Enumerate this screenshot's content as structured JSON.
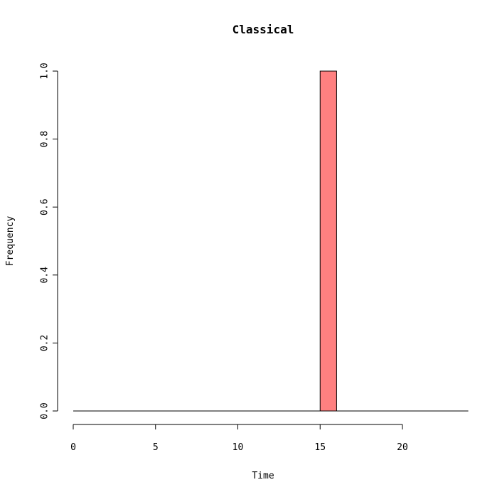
{
  "chart_data": {
    "type": "bar",
    "title": "Classical",
    "xlabel": "Time",
    "ylabel": "Frequency",
    "xlim": [
      0,
      24
    ],
    "ylim": [
      0,
      1
    ],
    "x_ticks": [
      "0",
      "5",
      "10",
      "15",
      "20"
    ],
    "y_ticks": [
      "0.0",
      "0.2",
      "0.4",
      "0.6",
      "0.8",
      "1.0"
    ],
    "bin_width": 1,
    "bins": [
      {
        "start": 15,
        "end": 16,
        "value": 1.0
      }
    ],
    "bar_color": "#ff8080",
    "grid": false,
    "legend": "none"
  }
}
